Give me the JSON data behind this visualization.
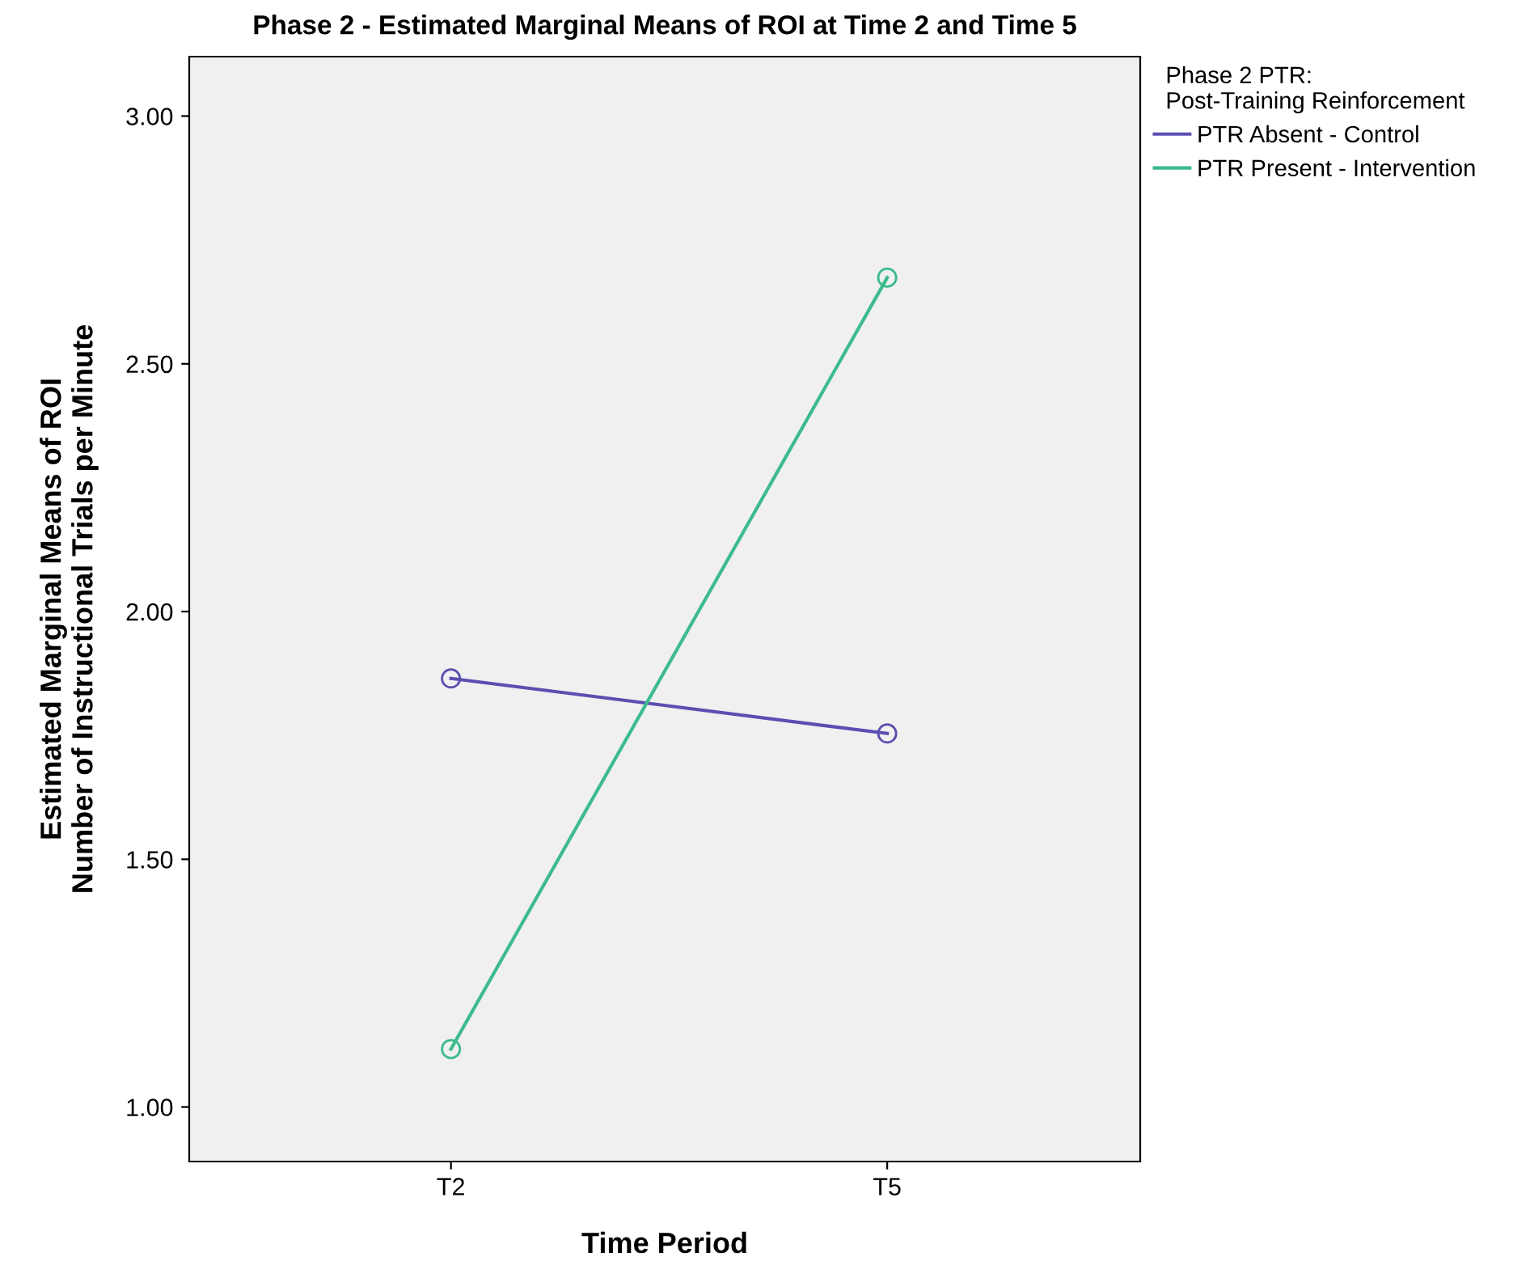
{
  "chart_data": {
    "type": "line",
    "title": "Phase 2 - Estimated Marginal Means of ROI at Time 2 and Time 5",
    "xlabel": "Time Period",
    "ylabel": "Estimated Marginal Means of ROI\nNumber of Instructional Trials per Minute",
    "legend_title": "Phase 2 PTR:\nPost-Training Reinforcement",
    "categories": [
      "T2",
      "T5"
    ],
    "series": [
      {
        "name": "PTR Absent - Control",
        "color": "#5a4fb0",
        "values": [
          1.865,
          1.754
        ]
      },
      {
        "name": "PTR Present - Intervention",
        "color": "#3dbb8c",
        "values": [
          1.117,
          2.674
        ]
      }
    ],
    "ylim": [
      0.89,
      3.12
    ],
    "yticks": [
      {
        "value": 1,
        "label": "1.00"
      },
      {
        "value": 1.5,
        "label": "1.50"
      },
      {
        "value": 2,
        "label": "2.00"
      },
      {
        "value": 2.5,
        "label": "2.50"
      },
      {
        "value": 3,
        "label": "3.00"
      }
    ],
    "marker": "circle",
    "line_style": "solid",
    "grid": false,
    "legend": "top right"
  }
}
